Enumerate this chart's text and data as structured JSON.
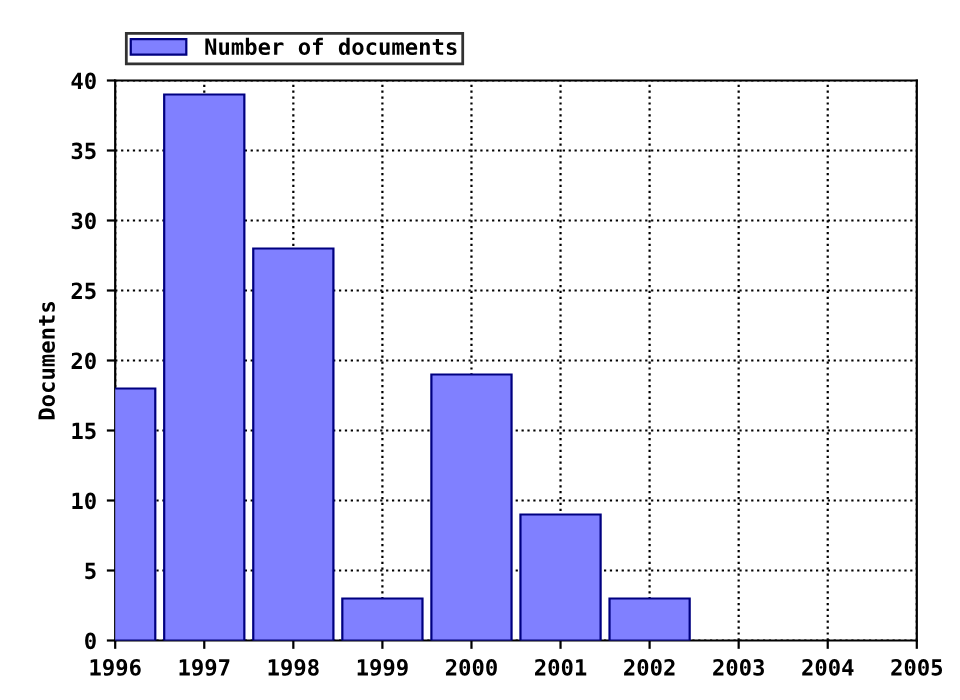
{
  "chart_data": {
    "type": "bar",
    "ylabel": "Documents",
    "x": [
      1996,
      1997,
      1998,
      1999,
      2000,
      2001,
      2002,
      2003,
      2004
    ],
    "series": [
      {
        "name": "Number of documents",
        "color": "#8080ff",
        "values": [
          18,
          39,
          28,
          3,
          19,
          9,
          3,
          0,
          0
        ]
      }
    ],
    "xlim": [
      1996,
      2005
    ],
    "xticks": [
      1996,
      1997,
      1998,
      1999,
      2000,
      2001,
      2002,
      2003,
      2004,
      2005
    ],
    "ylim": [
      0,
      40
    ],
    "yticks": [
      0,
      5,
      10,
      15,
      20,
      25,
      30,
      35,
      40
    ],
    "grid": true,
    "line_style": "dotted",
    "legend": "top left"
  }
}
